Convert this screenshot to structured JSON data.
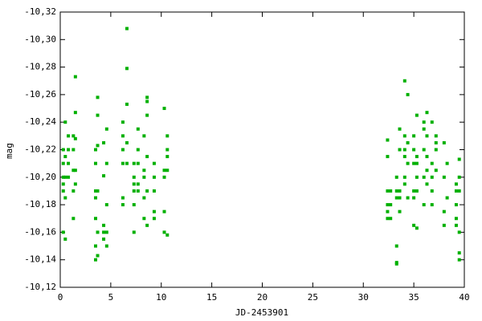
{
  "chart_data": {
    "type": "scatter",
    "xlabel": "JD-2453901",
    "ylabel": "mag",
    "color": "#00b000",
    "grid": false,
    "xlim": [
      0,
      40
    ],
    "xticks": [
      0,
      5,
      10,
      15,
      20,
      25,
      30,
      35,
      40
    ],
    "ylim": [
      -10.12,
      -10.32
    ],
    "yticks": [
      {
        "value": -10.32,
        "label": "-10,32"
      },
      {
        "value": -10.3,
        "label": "-10,30"
      },
      {
        "value": -10.28,
        "label": "-10,28"
      },
      {
        "value": -10.26,
        "label": "-10,26"
      },
      {
        "value": -10.24,
        "label": "-10,24"
      },
      {
        "value": -10.22,
        "label": "-10,22"
      },
      {
        "value": -10.2,
        "label": "-10,20"
      },
      {
        "value": -10.18,
        "label": "-10,18"
      },
      {
        "value": -10.16,
        "label": "-10,16"
      },
      {
        "value": -10.14,
        "label": "-10,14"
      },
      {
        "value": -10.12,
        "label": "-10,12"
      }
    ],
    "x": [
      0.3,
      0.3,
      0.3,
      0.3,
      0.3,
      0.3,
      0.5,
      0.5,
      0.5,
      0.5,
      0.5,
      0.8,
      0.8,
      0.8,
      0.8,
      1.3,
      1.3,
      1.3,
      1.3,
      1.3,
      1.5,
      1.5,
      1.5,
      1.5,
      1.5,
      3.5,
      3.5,
      3.5,
      3.5,
      3.5,
      3.5,
      3.5,
      3.7,
      3.7,
      3.7,
      3.7,
      3.7,
      3.7,
      4.3,
      4.3,
      4.3,
      4.3,
      4.3,
      4.6,
      4.6,
      4.6,
      4.6,
      4.6,
      6.2,
      6.2,
      6.2,
      6.2,
      6.2,
      6.2,
      6.6,
      6.6,
      6.6,
      6.6,
      6.6,
      7.3,
      7.3,
      7.3,
      7.3,
      7.3,
      7.3,
      7.7,
      7.7,
      7.7,
      7.7,
      7.7,
      8.3,
      8.3,
      8.3,
      8.3,
      8.3,
      8.6,
      8.6,
      8.6,
      8.6,
      8.6,
      8.6,
      9.3,
      9.3,
      9.3,
      9.3,
      9.3,
      10.3,
      10.3,
      10.3,
      10.3,
      10.3,
      10.6,
      10.6,
      10.6,
      10.6,
      10.6,
      32.4,
      32.4,
      32.4,
      32.4,
      32.4,
      32.4,
      32.7,
      32.7,
      32.7,
      33.3,
      33.3,
      33.3,
      33.3,
      33.3,
      33.3,
      33.6,
      33.6,
      33.6,
      33.6,
      33.6,
      34.1,
      34.1,
      34.1,
      34.1,
      34.1,
      34.1,
      34.4,
      34.4,
      34.4,
      34.4,
      35.0,
      35.0,
      35.0,
      35.0,
      35.0,
      35.0,
      35.3,
      35.3,
      35.3,
      35.3,
      35.3,
      35.3,
      36.0,
      36.0,
      36.0,
      36.0,
      36.0,
      36.3,
      36.3,
      36.3,
      36.3,
      36.3,
      36.8,
      36.8,
      36.8,
      36.8,
      36.8,
      37.2,
      37.2,
      37.2,
      37.2,
      38.0,
      38.0,
      38.0,
      38.0,
      38.3,
      38.3,
      39.2,
      39.2,
      39.2,
      39.2,
      39.2,
      39.5,
      39.5,
      39.5,
      39.5,
      39.5,
      39.5
    ],
    "values": [
      -10.16,
      -10.19,
      -10.2,
      -10.21,
      -10.22,
      -10.195,
      -10.155,
      -10.185,
      -10.2,
      -10.215,
      -10.24,
      -10.23,
      -10.21,
      -10.2,
      -10.22,
      -10.17,
      -10.19,
      -10.205,
      -10.22,
      -10.23,
      -10.273,
      -10.247,
      -10.228,
      -10.205,
      -10.195,
      -10.17,
      -10.185,
      -10.19,
      -10.21,
      -10.22,
      -10.15,
      -10.14,
      -10.143,
      -10.16,
      -10.19,
      -10.245,
      -10.258,
      -10.223,
      -10.16,
      -10.155,
      -10.201,
      -10.225,
      -10.165,
      -10.16,
      -10.18,
      -10.235,
      -10.21,
      -10.15,
      -10.18,
      -10.185,
      -10.21,
      -10.24,
      -10.22,
      -10.23,
      -10.308,
      -10.279,
      -10.253,
      -10.225,
      -10.21,
      -10.16,
      -10.18,
      -10.195,
      -10.2,
      -10.21,
      -10.19,
      -10.235,
      -10.22,
      -10.195,
      -10.19,
      -10.21,
      -10.17,
      -10.185,
      -10.2,
      -10.205,
      -10.23,
      -10.255,
      -10.258,
      -10.245,
      -10.215,
      -10.19,
      -10.165,
      -10.19,
      -10.2,
      -10.21,
      -10.17,
      -10.175,
      -10.25,
      -10.205,
      -10.2,
      -10.175,
      -10.16,
      -10.158,
      -10.22,
      -10.23,
      -10.215,
      -10.205,
      -10.17,
      -10.175,
      -10.18,
      -10.19,
      -10.215,
      -10.227,
      -10.17,
      -10.18,
      -10.19,
      -10.137,
      -10.138,
      -10.15,
      -10.185,
      -10.19,
      -10.2,
      -10.185,
      -10.19,
      -10.22,
      -10.235,
      -10.175,
      -10.195,
      -10.2,
      -10.215,
      -10.22,
      -10.23,
      -10.27,
      -10.26,
      -10.21,
      -10.185,
      -10.225,
      -10.21,
      -10.23,
      -10.22,
      -10.185,
      -10.19,
      -10.165,
      -10.163,
      -10.19,
      -10.2,
      -10.215,
      -10.245,
      -10.21,
      -10.18,
      -10.2,
      -10.22,
      -10.235,
      -10.24,
      -10.247,
      -10.23,
      -10.215,
      -10.205,
      -10.195,
      -10.18,
      -10.19,
      -10.2,
      -10.21,
      -10.24,
      -10.22,
      -10.225,
      -10.205,
      -10.23,
      -10.225,
      -10.2,
      -10.175,
      -10.165,
      -10.185,
      -10.21,
      -10.19,
      -10.195,
      -10.17,
      -10.165,
      -10.18,
      -10.14,
      -10.145,
      -10.16,
      -10.19,
      -10.2,
      -10.213
    ]
  }
}
